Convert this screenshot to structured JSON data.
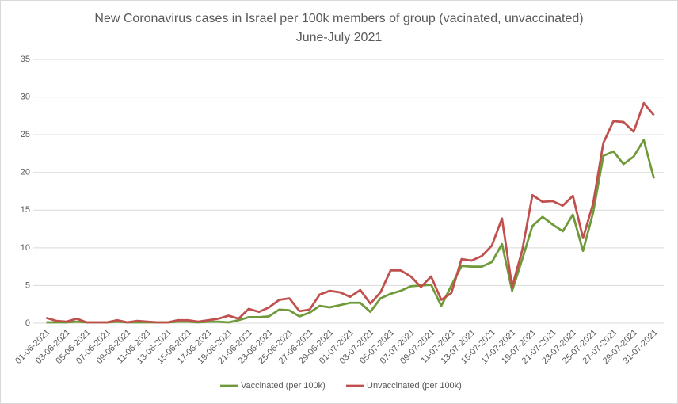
{
  "chart_data": {
    "type": "line",
    "title": "New Coronavirus cases in Israel per 100k members of group (vacinated, unvaccinated)",
    "subtitle": "June-July 2021",
    "categories": [
      "01-06-2021",
      null,
      "03-06-2021",
      null,
      "05-06-2021",
      null,
      "07-06-2021",
      null,
      "09-06-2021",
      null,
      "11-06-2021",
      null,
      "13-06-2021",
      null,
      "15-06-2021",
      null,
      "17-06-2021",
      null,
      "19-06-2021",
      null,
      "21-06-2021",
      null,
      "23-06-2021",
      null,
      "25-06-2021",
      null,
      "27-06-2021",
      null,
      "29-06-2021",
      null,
      "01-07-2021",
      null,
      "03-07-2021",
      null,
      "05-07-2021",
      null,
      "07-07-2021",
      null,
      "09-07-2021",
      null,
      "11-07-2021",
      null,
      "13-07-2021",
      null,
      "15-07-2021",
      null,
      "17-07-2021",
      null,
      "19-07-2021",
      null,
      "21-07-2021",
      null,
      "23-07-2021",
      null,
      "25-07-2021",
      null,
      "27-07-2021",
      null,
      "29-07-2021",
      null,
      "31-07-2021"
    ],
    "series": [
      {
        "name": "Vaccinated (per 100k)",
        "color": "#6f9a3a",
        "values": [
          0.1,
          0.1,
          0.1,
          0.2,
          0.1,
          0.1,
          0.1,
          0.2,
          0.1,
          0.1,
          0.1,
          0.1,
          0.1,
          0.2,
          0.2,
          0.1,
          0.2,
          0.2,
          0.1,
          0.4,
          0.8,
          0.8,
          0.9,
          1.8,
          1.7,
          0.9,
          1.4,
          2.3,
          2.1,
          2.4,
          2.7,
          2.7,
          1.5,
          3.3,
          3.9,
          4.3,
          4.9,
          5.0,
          5.1,
          2.3,
          5.0,
          7.6,
          7.5,
          7.5,
          8.1,
          10.5,
          4.3,
          8.5,
          12.9,
          14.1,
          13.1,
          12.2,
          14.4,
          9.6,
          14.7,
          22.2,
          22.8,
          21.1,
          22.1,
          24.3,
          19.2
        ]
      },
      {
        "name": "Unvaccinated (per 100k)",
        "color": "#c0504d",
        "values": [
          0.7,
          0.3,
          0.2,
          0.6,
          0.1,
          0.1,
          0.1,
          0.4,
          0.1,
          0.3,
          0.2,
          0.1,
          0.1,
          0.4,
          0.4,
          0.2,
          0.4,
          0.6,
          1.0,
          0.6,
          1.9,
          1.5,
          2.1,
          3.1,
          3.3,
          1.6,
          1.8,
          3.8,
          4.3,
          4.1,
          3.5,
          4.4,
          2.6,
          4.1,
          7.0,
          7.0,
          6.2,
          4.8,
          6.2,
          3.1,
          4.0,
          8.5,
          8.3,
          8.9,
          10.3,
          13.9,
          4.8,
          9.7,
          17.0,
          16.1,
          16.2,
          15.6,
          16.9,
          11.3,
          15.9,
          23.9,
          26.8,
          26.7,
          25.4,
          29.2,
          27.6
        ]
      }
    ],
    "ylim": [
      0,
      35
    ],
    "yticks": [
      0,
      5,
      10,
      15,
      20,
      25,
      30,
      35
    ],
    "grid": true,
    "legend": "bottom"
  }
}
